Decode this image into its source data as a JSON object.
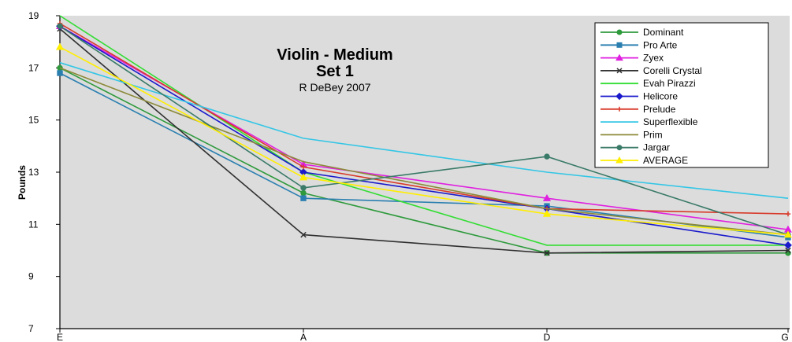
{
  "chart_data": {
    "type": "line",
    "title": "Violin - Medium",
    "subtitle_line2": "Set 1",
    "subtitle": "R DeBey 2007",
    "xlabel": "",
    "ylabel": "Pounds",
    "categories": [
      "E",
      "A",
      "D",
      "G"
    ],
    "ylim": [
      7,
      19
    ],
    "yticks": [
      "7",
      "9",
      "11",
      "13",
      "15",
      "17",
      "19"
    ],
    "grid": false,
    "legend_position": "top-right",
    "plot_background": "#dcdcdc",
    "series": [
      {
        "name": "Dominant",
        "color": "#2e9a3c",
        "marker": "circle",
        "values": [
          17.0,
          12.2,
          9.9,
          9.9
        ]
      },
      {
        "name": "Pro Arte",
        "color": "#2a7fb0",
        "marker": "square",
        "values": [
          16.8,
          12.0,
          11.7,
          10.5
        ]
      },
      {
        "name": "Zyex",
        "color": "#e020e0",
        "marker": "triangle",
        "values": [
          18.6,
          13.3,
          12.0,
          10.8
        ]
      },
      {
        "name": "Corelli Crystal",
        "color": "#303030",
        "marker": "x",
        "values": [
          18.5,
          10.6,
          9.9,
          10.0
        ]
      },
      {
        "name": "Evah Pirazzi",
        "color": "#33dd33",
        "marker": "none",
        "values": [
          19.0,
          13.0,
          10.2,
          10.2
        ]
      },
      {
        "name": "Helicore",
        "color": "#1a1acc",
        "marker": "diamond",
        "values": [
          18.6,
          13.0,
          11.6,
          10.2
        ]
      },
      {
        "name": "Prelude",
        "color": "#d83a2a",
        "marker": "plus",
        "values": [
          18.7,
          13.2,
          11.6,
          11.4
        ]
      },
      {
        "name": "Superflexible",
        "color": "#33c6e6",
        "marker": "none",
        "values": [
          17.2,
          14.3,
          13.0,
          12.0
        ]
      },
      {
        "name": "Prim",
        "color": "#8c8a3a",
        "marker": "none",
        "values": [
          17.0,
          13.4,
          11.6,
          10.6
        ]
      },
      {
        "name": "Jargar",
        "color": "#3a7a68",
        "marker": "circle",
        "values": [
          18.6,
          12.4,
          13.6,
          10.6
        ]
      },
      {
        "name": "AVERAGE",
        "color": "#ffee00",
        "marker": "triangle",
        "values": [
          17.8,
          12.8,
          11.4,
          10.6
        ]
      }
    ]
  }
}
